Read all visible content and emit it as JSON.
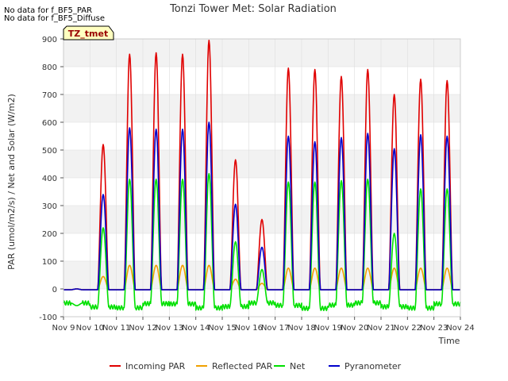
{
  "notes": [
    "No data for f_BF5_PAR",
    "No data for f_BF5_Diffuse"
  ],
  "badge": "TZ_tmet",
  "chart_data": {
    "type": "line",
    "title": "Tonzi Tower Met: Solar Radiation",
    "xlabel": "Time",
    "ylabel": "PAR (umol/m2/s) / Net and Solar (W/m2)",
    "ylim": [
      -100,
      900
    ],
    "xlim": [
      9,
      24
    ],
    "yticks": [
      -100,
      0,
      100,
      200,
      300,
      400,
      500,
      600,
      700,
      800,
      900
    ],
    "xtick_labels": [
      "Nov 9",
      "Nov 10",
      "Nov 11",
      "Nov 12",
      "Nov 13",
      "Nov 14",
      "Nov 15",
      "Nov 16",
      "Nov 17",
      "Nov 18",
      "Nov 19",
      "Nov 20",
      "Nov 21",
      "Nov 22",
      "Nov 23",
      "Nov 24"
    ],
    "grid": true,
    "legend_position": "bottom",
    "day_starts": [
      9,
      10,
      11,
      12,
      13,
      14,
      15,
      16,
      17,
      18,
      19,
      20,
      21,
      22,
      23
    ],
    "series": [
      {
        "name": "Incoming PAR",
        "color": "#e00000",
        "values": [
          0,
          520,
          845,
          850,
          845,
          895,
          465,
          250,
          795,
          790,
          765,
          790,
          700,
          755,
          750
        ]
      },
      {
        "name": "Reflected PAR",
        "color": "#f0a000",
        "values": [
          0,
          45,
          85,
          85,
          85,
          85,
          35,
          20,
          75,
          75,
          75,
          75,
          75,
          75,
          75
        ]
      },
      {
        "name": "Net",
        "color": "#00e000",
        "values": [
          -60,
          220,
          395,
          395,
          395,
          415,
          170,
          70,
          385,
          385,
          390,
          395,
          200,
          360,
          360
        ]
      },
      {
        "name": "Pyranometer",
        "color": "#0000cc",
        "values": [
          0,
          340,
          580,
          575,
          575,
          600,
          305,
          150,
          550,
          530,
          545,
          560,
          505,
          555,
          550
        ]
      }
    ]
  }
}
